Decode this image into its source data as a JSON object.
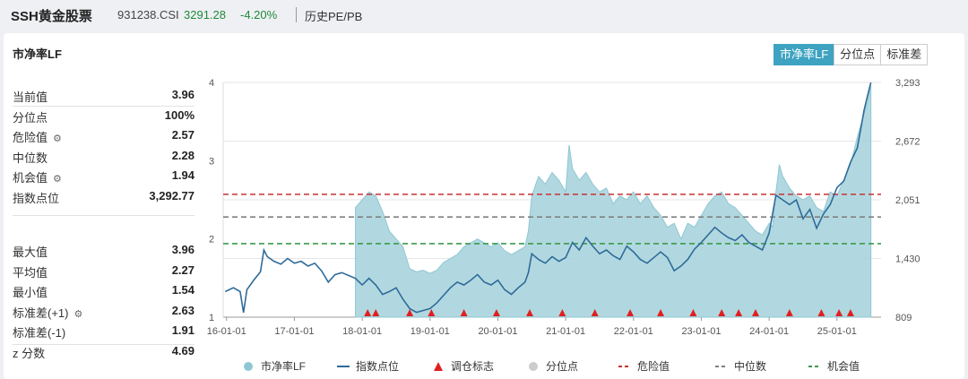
{
  "header": {
    "name": "SSH黄金股票",
    "code": "931238.CSI",
    "price": "3291.28",
    "change": "-4.20%",
    "tab": "历史PE/PB"
  },
  "panel": {
    "title": "市净率LF",
    "buttons": [
      {
        "label": "市净率LF",
        "active": true
      },
      {
        "label": "分位点",
        "active": false
      },
      {
        "label": "标准差",
        "active": false
      }
    ]
  },
  "stats_top": [
    {
      "label": "当前值",
      "value": "3.96",
      "gear": false
    },
    {
      "label": "分位点",
      "value": "100%",
      "gear": false
    },
    {
      "label": "危险值",
      "value": "2.57",
      "gear": true
    },
    {
      "label": "中位数",
      "value": "2.28",
      "gear": false
    },
    {
      "label": "机会值",
      "value": "1.94",
      "gear": true
    },
    {
      "label": "指数点位",
      "value": "3,292.77",
      "gear": false
    }
  ],
  "stats_bottom": [
    {
      "label": "最大值",
      "value": "3.96",
      "gear": false
    },
    {
      "label": "平均值",
      "value": "2.27",
      "gear": false
    },
    {
      "label": "最小值",
      "value": "1.54",
      "gear": false
    },
    {
      "label": "标准差(+1)",
      "value": "2.63",
      "gear": true
    },
    {
      "label": "标准差(-1)",
      "value": "1.91",
      "gear": false
    },
    {
      "label": "z 分数",
      "value": "4.69",
      "gear": false
    }
  ],
  "colors": {
    "pb_fill": "#a9d4dd",
    "pb_line": "#8ec7d3",
    "index_line": "#2f6b99",
    "marker": "#e02020",
    "danger": "#c83232",
    "median": "#808080",
    "opportunity": "#3a9a4a"
  },
  "chart_data": {
    "type": "area",
    "x_ticks": [
      "16-01-01",
      "17-01-01",
      "18-01-01",
      "19-01-01",
      "20-01-01",
      "21-01-01",
      "22-01-01",
      "23-01-01",
      "24-01-01",
      "25-01-01"
    ],
    "y_left_ticks": [
      "1",
      "2",
      "3",
      "4"
    ],
    "y_left_range": [
      1,
      4
    ],
    "y_right_ticks": [
      "809",
      "1,430",
      "2,051",
      "2,672",
      "3,293"
    ],
    "y_right_range": [
      809,
      3293
    ],
    "reference_lines": {
      "danger": 2.57,
      "median": 2.28,
      "opportunity": 1.94
    },
    "pb_series": {
      "name": "市净率LF",
      "points": [
        [
          2017.9,
          2.4
        ],
        [
          2018.0,
          2.5
        ],
        [
          2018.1,
          2.6
        ],
        [
          2018.2,
          2.55
        ],
        [
          2018.3,
          2.35
        ],
        [
          2018.4,
          2.1
        ],
        [
          2018.5,
          2.0
        ],
        [
          2018.6,
          1.9
        ],
        [
          2018.7,
          1.62
        ],
        [
          2018.8,
          1.58
        ],
        [
          2018.9,
          1.6
        ],
        [
          2019.0,
          1.56
        ],
        [
          2019.1,
          1.6
        ],
        [
          2019.2,
          1.7
        ],
        [
          2019.3,
          1.75
        ],
        [
          2019.4,
          1.8
        ],
        [
          2019.5,
          1.9
        ],
        [
          2019.6,
          1.95
        ],
        [
          2019.7,
          2.0
        ],
        [
          2019.8,
          1.95
        ],
        [
          2019.9,
          1.9
        ],
        [
          2020.0,
          1.95
        ],
        [
          2020.1,
          1.85
        ],
        [
          2020.2,
          1.8
        ],
        [
          2020.3,
          1.85
        ],
        [
          2020.4,
          1.9
        ],
        [
          2020.45,
          2.1
        ],
        [
          2020.5,
          2.55
        ],
        [
          2020.6,
          2.8
        ],
        [
          2020.7,
          2.7
        ],
        [
          2020.8,
          2.85
        ],
        [
          2020.9,
          2.75
        ],
        [
          2021.0,
          2.6
        ],
        [
          2021.05,
          3.2
        ],
        [
          2021.1,
          2.9
        ],
        [
          2021.2,
          2.75
        ],
        [
          2021.3,
          2.85
        ],
        [
          2021.4,
          2.7
        ],
        [
          2021.5,
          2.6
        ],
        [
          2021.6,
          2.65
        ],
        [
          2021.7,
          2.45
        ],
        [
          2021.8,
          2.55
        ],
        [
          2021.9,
          2.5
        ],
        [
          2022.0,
          2.6
        ],
        [
          2022.1,
          2.45
        ],
        [
          2022.2,
          2.55
        ],
        [
          2022.3,
          2.4
        ],
        [
          2022.4,
          2.3
        ],
        [
          2022.5,
          2.15
        ],
        [
          2022.6,
          2.2
        ],
        [
          2022.7,
          2.0
        ],
        [
          2022.8,
          2.2
        ],
        [
          2022.9,
          2.15
        ],
        [
          2023.0,
          2.3
        ],
        [
          2023.1,
          2.45
        ],
        [
          2023.2,
          2.55
        ],
        [
          2023.3,
          2.6
        ],
        [
          2023.4,
          2.45
        ],
        [
          2023.5,
          2.4
        ],
        [
          2023.6,
          2.3
        ],
        [
          2023.7,
          2.2
        ],
        [
          2023.8,
          2.1
        ],
        [
          2023.9,
          2.05
        ],
        [
          2024.0,
          2.2
        ],
        [
          2024.05,
          2.15
        ],
        [
          2024.1,
          2.6
        ],
        [
          2024.15,
          2.95
        ],
        [
          2024.2,
          2.8
        ],
        [
          2024.3,
          2.65
        ],
        [
          2024.4,
          2.55
        ],
        [
          2024.5,
          2.5
        ],
        [
          2024.6,
          2.55
        ],
        [
          2024.7,
          2.4
        ],
        [
          2024.8,
          2.35
        ],
        [
          2024.9,
          2.6
        ],
        [
          2025.0,
          2.55
        ],
        [
          2025.1,
          2.75
        ],
        [
          2025.2,
          2.95
        ],
        [
          2025.3,
          3.3
        ],
        [
          2025.4,
          3.6
        ],
        [
          2025.45,
          3.75
        ],
        [
          2025.5,
          3.96
        ]
      ]
    },
    "index_series": {
      "name": "指数点位",
      "points": [
        [
          2015.98,
          1080
        ],
        [
          2016.1,
          1120
        ],
        [
          2016.2,
          1080
        ],
        [
          2016.25,
          858
        ],
        [
          2016.3,
          1100
        ],
        [
          2016.4,
          1200
        ],
        [
          2016.5,
          1290
        ],
        [
          2016.55,
          1520
        ],
        [
          2016.6,
          1450
        ],
        [
          2016.7,
          1400
        ],
        [
          2016.8,
          1370
        ],
        [
          2016.9,
          1430
        ],
        [
          2017.0,
          1380
        ],
        [
          2017.1,
          1400
        ],
        [
          2017.2,
          1350
        ],
        [
          2017.3,
          1380
        ],
        [
          2017.4,
          1300
        ],
        [
          2017.5,
          1180
        ],
        [
          2017.6,
          1260
        ],
        [
          2017.7,
          1280
        ],
        [
          2017.8,
          1250
        ],
        [
          2017.9,
          1220
        ],
        [
          2018.0,
          1150
        ],
        [
          2018.1,
          1220
        ],
        [
          2018.2,
          1150
        ],
        [
          2018.3,
          1050
        ],
        [
          2018.4,
          1080
        ],
        [
          2018.5,
          1120
        ],
        [
          2018.6,
          1000
        ],
        [
          2018.7,
          900
        ],
        [
          2018.8,
          860
        ],
        [
          2018.9,
          880
        ],
        [
          2019.0,
          900
        ],
        [
          2019.1,
          960
        ],
        [
          2019.2,
          1040
        ],
        [
          2019.3,
          1120
        ],
        [
          2019.4,
          1180
        ],
        [
          2019.5,
          1150
        ],
        [
          2019.6,
          1200
        ],
        [
          2019.7,
          1260
        ],
        [
          2019.8,
          1180
        ],
        [
          2019.9,
          1150
        ],
        [
          2020.0,
          1200
        ],
        [
          2020.1,
          1100
        ],
        [
          2020.2,
          1050
        ],
        [
          2020.3,
          1120
        ],
        [
          2020.4,
          1180
        ],
        [
          2020.45,
          1280
        ],
        [
          2020.5,
          1480
        ],
        [
          2020.6,
          1420
        ],
        [
          2020.7,
          1380
        ],
        [
          2020.8,
          1450
        ],
        [
          2020.9,
          1400
        ],
        [
          2021.0,
          1440
        ],
        [
          2021.1,
          1600
        ],
        [
          2021.2,
          1520
        ],
        [
          2021.3,
          1650
        ],
        [
          2021.4,
          1560
        ],
        [
          2021.5,
          1480
        ],
        [
          2021.6,
          1520
        ],
        [
          2021.7,
          1460
        ],
        [
          2021.8,
          1420
        ],
        [
          2021.9,
          1560
        ],
        [
          2022.0,
          1500
        ],
        [
          2022.1,
          1420
        ],
        [
          2022.2,
          1380
        ],
        [
          2022.3,
          1440
        ],
        [
          2022.4,
          1500
        ],
        [
          2022.5,
          1440
        ],
        [
          2022.6,
          1300
        ],
        [
          2022.7,
          1350
        ],
        [
          2022.8,
          1420
        ],
        [
          2022.9,
          1530
        ],
        [
          2023.0,
          1600
        ],
        [
          2023.1,
          1680
        ],
        [
          2023.2,
          1760
        ],
        [
          2023.3,
          1700
        ],
        [
          2023.4,
          1650
        ],
        [
          2023.5,
          1620
        ],
        [
          2023.6,
          1680
        ],
        [
          2023.7,
          1600
        ],
        [
          2023.8,
          1560
        ],
        [
          2023.9,
          1520
        ],
        [
          2024.0,
          1700
        ],
        [
          2024.1,
          2100
        ],
        [
          2024.2,
          2050
        ],
        [
          2024.3,
          2000
        ],
        [
          2024.4,
          2050
        ],
        [
          2024.5,
          1850
        ],
        [
          2024.6,
          1950
        ],
        [
          2024.7,
          1750
        ],
        [
          2024.8,
          1900
        ],
        [
          2024.9,
          2000
        ],
        [
          2025.0,
          2180
        ],
        [
          2025.1,
          2250
        ],
        [
          2025.2,
          2450
        ],
        [
          2025.3,
          2600
        ],
        [
          2025.4,
          3000
        ],
        [
          2025.45,
          3150
        ],
        [
          2025.5,
          3292
        ]
      ]
    },
    "marker_dates": [
      2018.08,
      2018.2,
      2018.7,
      2019.02,
      2019.5,
      2019.98,
      2020.47,
      2020.95,
      2021.43,
      2021.95,
      2022.4,
      2022.88,
      2023.3,
      2023.55,
      2023.8,
      2024.3,
      2024.77,
      2025.03,
      2025.2
    ],
    "legend": [
      {
        "key": "pb",
        "label": "市净率LF",
        "shape": "dot",
        "color": "#8ec7d3"
      },
      {
        "key": "index",
        "label": "指数点位",
        "shape": "line",
        "color": "#2f6b99"
      },
      {
        "key": "marker",
        "label": "调仓标志",
        "shape": "triangle",
        "color": "#e02020"
      },
      {
        "key": "pct",
        "label": "分位点",
        "shape": "dot",
        "color": "#cccccc"
      },
      {
        "key": "danger",
        "label": "危险值",
        "shape": "dash",
        "color": "#c83232"
      },
      {
        "key": "median",
        "label": "中位数",
        "shape": "dash",
        "color": "#808080"
      },
      {
        "key": "opportunity",
        "label": "机会值",
        "shape": "dash",
        "color": "#3a9a4a"
      }
    ]
  }
}
